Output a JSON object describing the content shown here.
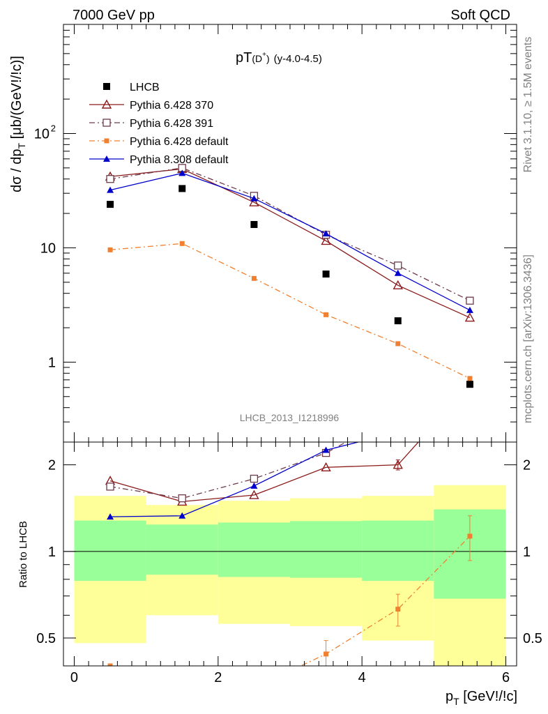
{
  "header": {
    "left": "7000 GeV pp",
    "right": "Soft QCD"
  },
  "side_text": {
    "rivet": "Rivet 3.1.10, ≥ 1.5M events",
    "source": "mcplots.cern.ch [arXiv:1306.3436]"
  },
  "chart_data": {
    "type": "scatter",
    "title_main": "pT",
    "title_sub": "(D",
    "title_sup": "+",
    "title_close": ")",
    "title_rapidity": "(y-4.0-4.5)",
    "analysis_tag": "LHCB_2013_I1218996",
    "ylabel_main": "dσ / dp",
    "ylabel_sub": "T",
    "ylabel_unit": " [μb/(GeV!/!c)]",
    "xlabel_main": "p",
    "xlabel_sub": "T",
    "xlabel_unit": " [GeV!/!c]",
    "ratio_ylabel": "Ratio to LHCB",
    "main_yscale": "log",
    "main_ylim": [
      0.2,
      900
    ],
    "ratio_ylim": [
      0.4,
      2.4
    ],
    "xlim": [
      -0.15,
      6.15
    ],
    "x_ticks": [
      0,
      2,
      4,
      6
    ],
    "x_tick_labels": [
      "0",
      "2",
      "4",
      "6"
    ],
    "main_y_ticks": [
      1,
      10,
      100
    ],
    "main_y_tick_labels": [
      "1",
      "10",
      "10"
    ],
    "main_y_tick_sup": [
      "",
      "",
      "2"
    ],
    "ratio_y_ticks": [
      0.5,
      1,
      2
    ],
    "ratio_y_tick_labels": [
      "0.5",
      "1",
      "2"
    ],
    "data": {
      "name": "LHCB",
      "x": [
        0.5,
        1.5,
        2.5,
        3.5,
        4.5,
        5.5
      ],
      "y": [
        24,
        33,
        16,
        5.9,
        2.3,
        0.64
      ]
    },
    "bins": {
      "low": [
        0,
        1,
        2,
        3,
        4,
        5
      ],
      "high": [
        1,
        2,
        3,
        4,
        5,
        6
      ],
      "green_low": [
        0.79,
        0.83,
        0.815,
        0.81,
        0.79,
        0.685
      ],
      "green_high": [
        1.28,
        1.24,
        1.26,
        1.275,
        1.28,
        1.4
      ],
      "yellow_low": [
        0.48,
        0.6,
        0.56,
        0.55,
        0.49,
        0.32
      ],
      "yellow_high": [
        1.56,
        1.45,
        1.5,
        1.53,
        1.56,
        1.7
      ]
    },
    "series": [
      {
        "name": "Pythia 6.428 370",
        "color": "#8b1a1a",
        "marker": "triangle-open",
        "dash": "",
        "y": [
          42,
          49,
          25,
          11.5,
          4.7,
          2.45
        ],
        "ratio": [
          1.76,
          1.49,
          1.57,
          1.96,
          2.0,
          3.8
        ],
        "ratio_err": [
          0,
          0,
          0,
          0,
          0.08,
          0
        ]
      },
      {
        "name": "Pythia 6.428 391",
        "color": "#6e3a4a",
        "marker": "square-open",
        "dash": "8,4,2,4",
        "y": [
          40,
          50,
          28.5,
          13,
          7.0,
          3.45
        ],
        "ratio": [
          1.68,
          1.53,
          1.79,
          2.2,
          3.0,
          5.3
        ],
        "ratio_err": [
          0,
          0,
          0,
          0,
          0,
          0
        ]
      },
      {
        "name": "Pythia 6.428 default",
        "color": "#f08030",
        "marker": "square-filled",
        "dash": "8,4,2,4",
        "y": [
          9.6,
          10.9,
          5.4,
          2.6,
          1.45,
          0.72
        ],
        "ratio": [
          0.4,
          0.33,
          0.335,
          0.44,
          0.63,
          1.13
        ],
        "ratio_err": [
          0,
          0,
          0,
          0.05,
          0.08,
          0.2
        ]
      },
      {
        "name": "Pythia 8.308 default",
        "color": "#0000cc",
        "marker": "triangle-filled",
        "dash": "",
        "y": [
          32,
          45,
          27,
          13.3,
          6.0,
          2.85
        ],
        "ratio": [
          1.32,
          1.33,
          1.69,
          2.25,
          2.6,
          4.5
        ],
        "ratio_err": [
          0,
          0,
          0,
          0,
          0,
          0
        ]
      }
    ]
  }
}
